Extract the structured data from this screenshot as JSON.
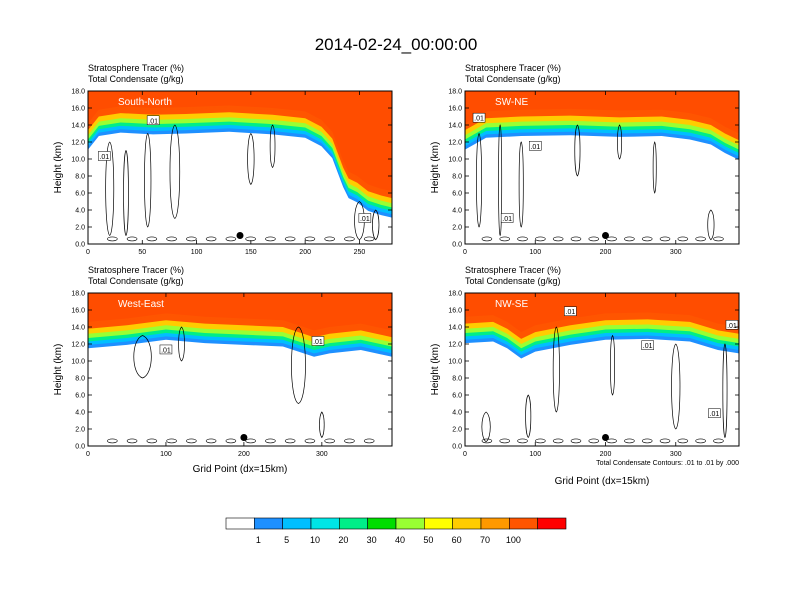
{
  "title": "2014-02-24_00:00:00",
  "colorbar": {
    "levels": [
      "1",
      "5",
      "10",
      "20",
      "30",
      "40",
      "50",
      "60",
      "70",
      "100"
    ],
    "colors": [
      "#ffffff",
      "#1e90ff",
      "#00bfff",
      "#00e6e6",
      "#00ee88",
      "#00dd00",
      "#99ff33",
      "#ffff00",
      "#ffcc00",
      "#ff9900",
      "#ff5500",
      "#ff0000"
    ]
  },
  "chart_data": [
    {
      "type": "heatmap",
      "region_label": "South-North",
      "subtitle_1": "Stratosphere Tracer   (%)",
      "subtitle_2": "Total Condensate   (g/kg)",
      "ylabel": "Height (km)",
      "xlabel": "",
      "xlim": [
        0,
        280
      ],
      "ylim": [
        0,
        18
      ],
      "xticks": [
        "0",
        "50",
        "100",
        "150",
        "200",
        "250"
      ],
      "yticks": [
        "0.0",
        "2.0",
        "4.0",
        "6.0",
        "8.0",
        "10.0",
        "12.0",
        "14.0",
        "16.0",
        "18.0"
      ],
      "contour_label": ".01",
      "marker": {
        "x": 140,
        "y": 1.0
      },
      "tropopause": [
        [
          0,
          14.2
        ],
        [
          10,
          15.8
        ],
        [
          30,
          16.2
        ],
        [
          60,
          16.0
        ],
        [
          90,
          16.1
        ],
        [
          130,
          16.3
        ],
        [
          170,
          16.0
        ],
        [
          200,
          15.6
        ],
        [
          215,
          14.6
        ],
        [
          225,
          13.2
        ],
        [
          230,
          11.5
        ],
        [
          235,
          9.8
        ],
        [
          240,
          8.5
        ],
        [
          248,
          8.0
        ],
        [
          258,
          7.0
        ],
        [
          270,
          6.5
        ],
        [
          280,
          6.2
        ]
      ]
    },
    {
      "type": "heatmap",
      "region_label": "SW-NE",
      "subtitle_1": "Stratosphere Tracer   (%)",
      "subtitle_2": "Total Condensate   (g/kg)",
      "ylabel": "Height (km)",
      "xlabel": "",
      "xlim": [
        0,
        390
      ],
      "ylim": [
        0,
        18
      ],
      "xticks": [
        "0",
        "100",
        "200",
        "300"
      ],
      "yticks": [
        "0.0",
        "2.0",
        "4.0",
        "6.0",
        "8.0",
        "10.0",
        "12.0",
        "14.0",
        "16.0",
        "18.0"
      ],
      "contour_label": ".01",
      "marker": {
        "x": 200,
        "y": 1.0
      },
      "tropopause": [
        [
          0,
          14.2
        ],
        [
          30,
          15.6
        ],
        [
          80,
          15.8
        ],
        [
          150,
          15.9
        ],
        [
          220,
          15.7
        ],
        [
          280,
          15.8
        ],
        [
          320,
          15.4
        ],
        [
          350,
          14.8
        ],
        [
          370,
          13.8
        ],
        [
          390,
          13.0
        ]
      ]
    },
    {
      "type": "heatmap",
      "region_label": "West-East",
      "subtitle_1": "Stratosphere Tracer   (%)",
      "subtitle_2": "Total Condensate   (g/kg)",
      "ylabel": "Height (km)",
      "xlabel": "Grid Point (dx=15km)",
      "xlim": [
        0,
        390
      ],
      "ylim": [
        0,
        18
      ],
      "xticks": [
        "0",
        "100",
        "200",
        "300"
      ],
      "yticks": [
        "0.0",
        "2.0",
        "4.0",
        "6.0",
        "8.0",
        "10.0",
        "12.0",
        "14.0",
        "16.0",
        "18.0"
      ],
      "contour_label": ".01",
      "marker": {
        "x": 200,
        "y": 1.0
      },
      "tropopause": [
        [
          0,
          14.6
        ],
        [
          50,
          15.0
        ],
        [
          100,
          15.6
        ],
        [
          150,
          15.2
        ],
        [
          200,
          15.0
        ],
        [
          250,
          14.8
        ],
        [
          290,
          13.6
        ],
        [
          310,
          14.0
        ],
        [
          350,
          14.4
        ],
        [
          390,
          13.6
        ]
      ]
    },
    {
      "type": "heatmap",
      "region_label": "NW-SE",
      "subtitle_1": "Stratosphere Tracer   (%)",
      "subtitle_2": "Total Condensate   (g/kg)",
      "ylabel": "Height (km)",
      "xlabel": "Grid Point (dx=15km)",
      "xlim": [
        0,
        390
      ],
      "ylim": [
        0,
        18
      ],
      "xticks": [
        "0",
        "100",
        "200",
        "300"
      ],
      "yticks": [
        "0.0",
        "2.0",
        "4.0",
        "6.0",
        "8.0",
        "10.0",
        "12.0",
        "14.0",
        "16.0",
        "18.0"
      ],
      "contour_label": ".01",
      "note": "Total Condensate Contours: .01 to .01 by .000",
      "marker": {
        "x": 200,
        "y": 1.0
      },
      "tropopause": [
        [
          0,
          15.2
        ],
        [
          40,
          15.4
        ],
        [
          60,
          14.6
        ],
        [
          80,
          13.4
        ],
        [
          100,
          14.2
        ],
        [
          150,
          15.0
        ],
        [
          200,
          15.6
        ],
        [
          260,
          15.7
        ],
        [
          320,
          15.4
        ],
        [
          360,
          14.4
        ],
        [
          390,
          14.0
        ]
      ]
    }
  ]
}
